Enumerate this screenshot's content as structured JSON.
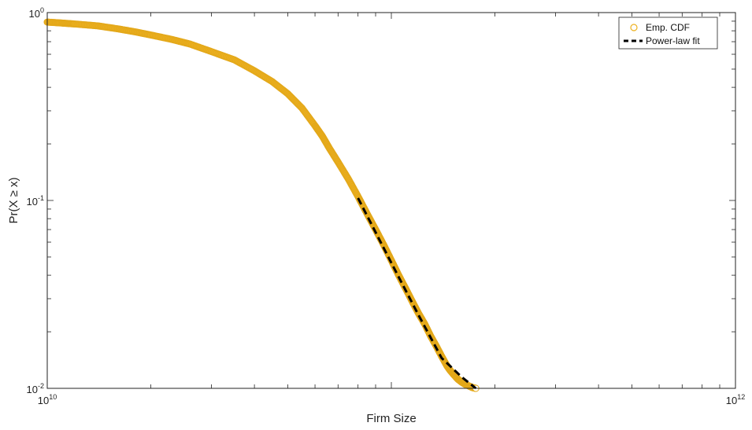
{
  "chart_data": {
    "type": "scatter",
    "xlabel": "Firm Size",
    "ylabel": "Pr(X ≥ x)",
    "xscale": "log",
    "yscale": "log",
    "xlim": [
      10000000000,
      1000000000000
    ],
    "ylim": [
      0.01,
      1
    ],
    "grid": false,
    "legend_position": "top-right",
    "x_ticks": [
      {
        "value": 10000000000,
        "base": "10",
        "exp": "10"
      },
      {
        "value": 1000000000000,
        "base": "10",
        "exp": "12"
      }
    ],
    "y_ticks": [
      {
        "value": 1,
        "base": "10",
        "exp": "0"
      },
      {
        "value": 0.1,
        "base": "10",
        "exp": "-1"
      },
      {
        "value": 0.01,
        "base": "10",
        "exp": "-2"
      }
    ],
    "series": [
      {
        "name": "Emp. CDF",
        "kind": "markers",
        "color": "#EDB120",
        "x": [
          10000000000,
          11000000000,
          12000000000,
          14000000000,
          16000000000,
          18000000000,
          20000000000,
          23000000000,
          26000000000,
          30000000000,
          35000000000,
          40000000000,
          45000000000,
          50000000000,
          55000000000,
          60000000000,
          63000000000,
          66000000000,
          70000000000,
          75000000000,
          80000000000,
          85000000000,
          90000000000,
          95000000000,
          100000000000,
          105000000000,
          110000000000,
          115000000000,
          120000000000,
          125000000000,
          130000000000,
          135000000000,
          140000000000,
          145000000000,
          148000000000,
          152000000000,
          156000000000,
          160000000000,
          164000000000,
          168000000000,
          172000000000,
          176000000000
        ],
        "y": [
          0.89,
          0.88,
          0.87,
          0.85,
          0.82,
          0.79,
          0.76,
          0.72,
          0.68,
          0.62,
          0.56,
          0.49,
          0.43,
          0.37,
          0.31,
          0.25,
          0.22,
          0.19,
          0.16,
          0.13,
          0.105,
          0.085,
          0.07,
          0.058,
          0.048,
          0.04,
          0.034,
          0.029,
          0.025,
          0.022,
          0.019,
          0.0168,
          0.0148,
          0.0132,
          0.0125,
          0.0118,
          0.0112,
          0.0108,
          0.0105,
          0.0103,
          0.0101,
          0.01
        ]
      },
      {
        "name": "Power-law fit",
        "kind": "line",
        "style": "dashed",
        "color": "#000000",
        "x": [
          80000000000,
          100000000000,
          120000000000,
          140000000000,
          160000000000,
          176000000000
        ],
        "y": [
          0.103,
          0.0465,
          0.0245,
          0.0145,
          0.0115,
          0.01
        ]
      }
    ]
  }
}
